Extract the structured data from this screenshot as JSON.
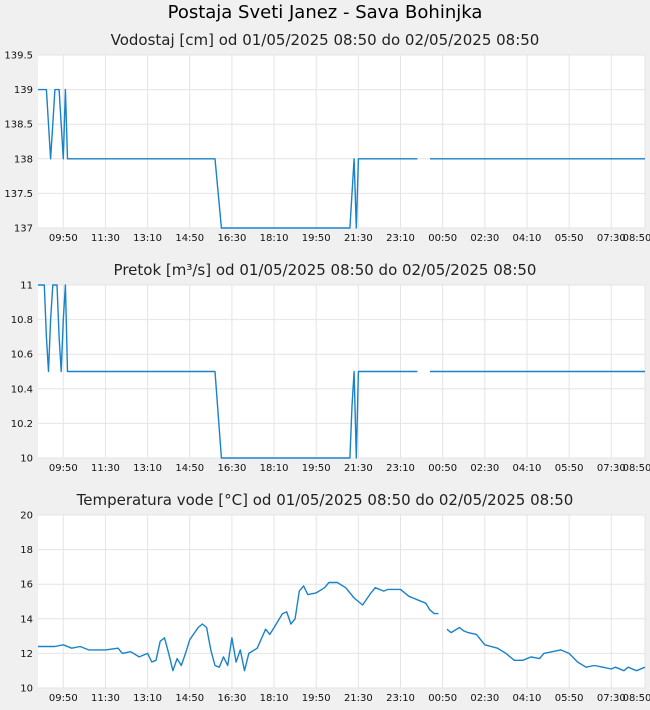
{
  "page_title": "Postaja Sveti Janez - Sava Bohinjka",
  "x_tick_labels": [
    "09:50",
    "11:30",
    "13:10",
    "14:50",
    "16:30",
    "18:10",
    "19:50",
    "21:30",
    "23:10",
    "00:50",
    "02:30",
    "04:10",
    "05:50",
    "07:30",
    "08:50"
  ],
  "colors": {
    "series": "#1a82c8",
    "plot_bg": "#ffffff",
    "grid": "#e4e4e4",
    "page_bg": "#f0f0f0"
  },
  "chart_data": [
    {
      "type": "line",
      "title": "Vodostaj [cm] od 01/05/2025 08:50 do 02/05/2025 08:50",
      "xlabel": "",
      "ylabel": "",
      "ylim": [
        137,
        139.5
      ],
      "y_ticks": [
        "137",
        "137.5",
        "138",
        "138.5",
        "139",
        "139.5"
      ],
      "grid": true,
      "x_ticks": [
        "09:50",
        "11:30",
        "13:10",
        "14:50",
        "16:30",
        "18:10",
        "19:50",
        "21:30",
        "23:10",
        "00:50",
        "02:30",
        "04:10",
        "05:50",
        "07:30",
        "08:50"
      ],
      "series": [
        {
          "values": [
            [
              "08:50",
              139
            ],
            [
              "09:10",
              139
            ],
            [
              "09:15",
              138.5
            ],
            [
              "09:20",
              138
            ],
            [
              "09:25",
              138.5
            ],
            [
              "09:30",
              139
            ],
            [
              "09:40",
              139
            ],
            [
              "09:45",
              138.5
            ],
            [
              "09:50",
              138
            ],
            [
              "09:55",
              139
            ],
            [
              "10:00",
              138
            ],
            [
              "10:05",
              138
            ],
            [
              "15:50",
              138
            ],
            [
              "16:05",
              137
            ],
            [
              "21:10",
              137
            ],
            [
              "21:15",
              137.5
            ],
            [
              "21:20",
              138
            ],
            [
              "21:25",
              137
            ],
            [
              "21:30",
              138
            ],
            [
              "23:50",
              138
            ],
            null,
            [
              "00:20",
              138
            ],
            [
              "08:50",
              138
            ]
          ]
        }
      ]
    },
    {
      "type": "line",
      "title": "Pretok [m³/s] od 01/05/2025 08:50 do 02/05/2025 08:50",
      "xlabel": "",
      "ylabel": "",
      "ylim": [
        10,
        11
      ],
      "y_ticks": [
        "10",
        "10.2",
        "10.4",
        "10.6",
        "10.8",
        "11"
      ],
      "grid": true,
      "x_ticks": [
        "09:50",
        "11:30",
        "13:10",
        "14:50",
        "16:30",
        "18:10",
        "19:50",
        "21:30",
        "23:10",
        "00:50",
        "02:30",
        "04:10",
        "05:50",
        "07:30",
        "08:50"
      ],
      "series": [
        {
          "values": [
            [
              "08:50",
              11
            ],
            [
              "09:05",
              11
            ],
            [
              "09:10",
              10.7
            ],
            [
              "09:15",
              10.5
            ],
            [
              "09:20",
              10.8
            ],
            [
              "09:25",
              11
            ],
            [
              "09:35",
              11
            ],
            [
              "09:40",
              10.7
            ],
            [
              "09:45",
              10.5
            ],
            [
              "09:50",
              10.8
            ],
            [
              "09:55",
              11
            ],
            [
              "10:00",
              10.5
            ],
            [
              "10:05",
              10.5
            ],
            [
              "15:50",
              10.5
            ],
            [
              "16:05",
              10
            ],
            [
              "21:10",
              10
            ],
            [
              "21:15",
              10.3
            ],
            [
              "21:20",
              10.5
            ],
            [
              "21:25",
              10
            ],
            [
              "21:30",
              10.5
            ],
            [
              "23:50",
              10.5
            ],
            null,
            [
              "00:20",
              10.5
            ],
            [
              "08:50",
              10.5
            ]
          ]
        }
      ]
    },
    {
      "type": "line",
      "title": "Temperatura vode [°C] od 01/05/2025 08:50 do 02/05/2025 08:50",
      "xlabel": "",
      "ylabel": "",
      "ylim": [
        10,
        20
      ],
      "y_ticks": [
        "10",
        "12",
        "14",
        "16",
        "18",
        "20"
      ],
      "grid": true,
      "x_ticks": [
        "09:50",
        "11:30",
        "13:10",
        "14:50",
        "16:30",
        "18:10",
        "19:50",
        "21:30",
        "23:10",
        "00:50",
        "02:30",
        "04:10",
        "05:50",
        "07:30",
        "08:50"
      ],
      "series": [
        {
          "values": [
            [
              "08:50",
              12.4
            ],
            [
              "09:30",
              12.4
            ],
            [
              "09:50",
              12.5
            ],
            [
              "10:10",
              12.3
            ],
            [
              "10:30",
              12.4
            ],
            [
              "10:50",
              12.2
            ],
            [
              "11:30",
              12.2
            ],
            [
              "12:00",
              12.3
            ],
            [
              "12:10",
              12.0
            ],
            [
              "12:30",
              12.1
            ],
            [
              "12:50",
              11.8
            ],
            [
              "13:10",
              12.0
            ],
            [
              "13:20",
              11.5
            ],
            [
              "13:30",
              11.6
            ],
            [
              "13:40",
              12.7
            ],
            [
              "13:50",
              12.9
            ],
            [
              "14:00",
              12.0
            ],
            [
              "14:10",
              11.0
            ],
            [
              "14:20",
              11.7
            ],
            [
              "14:30",
              11.3
            ],
            [
              "14:40",
              12.0
            ],
            [
              "14:50",
              12.8
            ],
            [
              "15:10",
              13.5
            ],
            [
              "15:20",
              13.7
            ],
            [
              "15:30",
              13.5
            ],
            [
              "15:40",
              12.2
            ],
            [
              "15:50",
              11.3
            ],
            [
              "16:00",
              11.2
            ],
            [
              "16:10",
              11.8
            ],
            [
              "16:20",
              11.3
            ],
            [
              "16:30",
              12.9
            ],
            [
              "16:40",
              11.5
            ],
            [
              "16:50",
              12.2
            ],
            [
              "17:00",
              11.0
            ],
            [
              "17:10",
              12.0
            ],
            [
              "17:30",
              12.3
            ],
            [
              "17:50",
              13.4
            ],
            [
              "18:00",
              13.1
            ],
            [
              "18:10",
              13.5
            ],
            [
              "18:30",
              14.3
            ],
            [
              "18:40",
              14.4
            ],
            [
              "18:50",
              13.7
            ],
            [
              "19:00",
              14.0
            ],
            [
              "19:10",
              15.6
            ],
            [
              "19:20",
              15.9
            ],
            [
              "19:30",
              15.4
            ],
            [
              "19:50",
              15.5
            ],
            [
              "20:10",
              15.8
            ],
            [
              "20:20",
              16.1
            ],
            [
              "20:40",
              16.1
            ],
            [
              "21:00",
              15.8
            ],
            [
              "21:20",
              15.2
            ],
            [
              "21:40",
              14.8
            ],
            [
              "22:00",
              15.5
            ],
            [
              "22:10",
              15.8
            ],
            [
              "22:30",
              15.6
            ],
            [
              "22:40",
              15.7
            ],
            [
              "23:10",
              15.7
            ],
            [
              "23:30",
              15.3
            ],
            [
              "23:40",
              15.2
            ],
            [
              "23:50",
              15.1
            ],
            [
              "00:10",
              14.9
            ],
            [
              "00:20",
              14.5
            ],
            [
              "00:30",
              14.3
            ],
            [
              "00:40",
              14.3
            ],
            null,
            [
              "01:00",
              13.4
            ],
            [
              "01:10",
              13.2
            ],
            [
              "01:30",
              13.5
            ],
            [
              "01:40",
              13.3
            ],
            [
              "01:50",
              13.2
            ],
            [
              "02:10",
              13.1
            ],
            [
              "02:30",
              12.5
            ],
            [
              "03:00",
              12.3
            ],
            [
              "03:20",
              12.0
            ],
            [
              "03:40",
              11.6
            ],
            [
              "04:00",
              11.6
            ],
            [
              "04:20",
              11.8
            ],
            [
              "04:40",
              11.7
            ],
            [
              "04:50",
              12.0
            ],
            [
              "05:10",
              12.1
            ],
            [
              "05:30",
              12.2
            ],
            [
              "05:50",
              12.0
            ],
            [
              "06:10",
              11.5
            ],
            [
              "06:30",
              11.2
            ],
            [
              "06:50",
              11.3
            ],
            [
              "07:10",
              11.2
            ],
            [
              "07:30",
              11.1
            ],
            [
              "07:40",
              11.2
            ],
            [
              "08:00",
              11.0
            ],
            [
              "08:10",
              11.2
            ],
            [
              "08:30",
              11.0
            ],
            [
              "08:50",
              11.2
            ]
          ]
        }
      ]
    }
  ]
}
